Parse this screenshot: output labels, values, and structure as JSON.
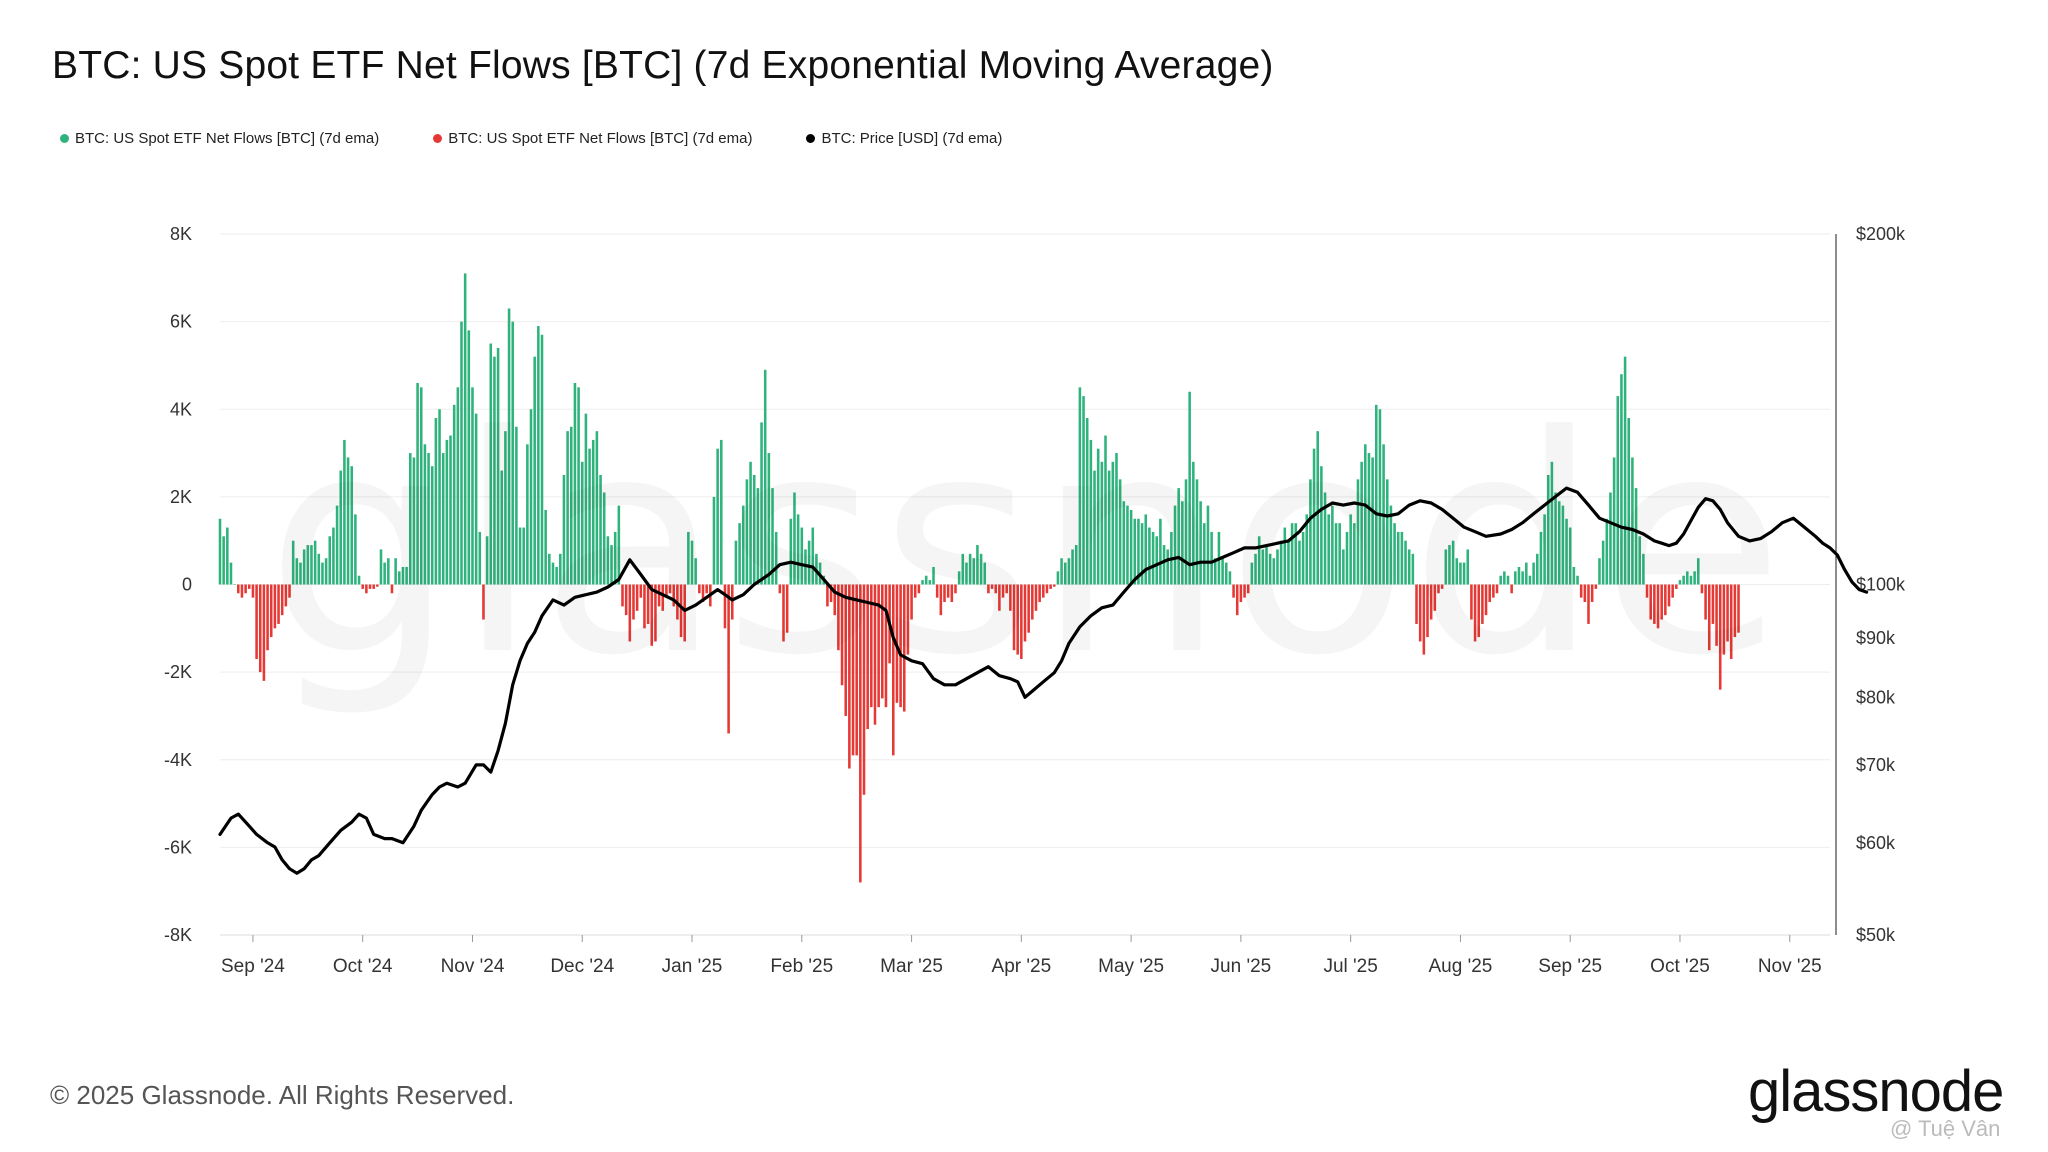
{
  "chart_data": {
    "type": "bar",
    "title": "BTC: US Spot ETF Net Flows [BTC] (7d Exponential Moving Average)",
    "legend": [
      {
        "label": "BTC: US Spot ETF Net Flows [BTC] (7d ema)",
        "color": "#2fb37c"
      },
      {
        "label": "BTC: US Spot ETF Net Flows [BTC] (7d ema)",
        "color": "#e53935"
      },
      {
        "label": "BTC: Price [USD] (7d ema)",
        "color": "#000000"
      }
    ],
    "y_left": {
      "min": -8000,
      "max": 8000,
      "ticks": [
        {
          "v": 8000,
          "label": "8K"
        },
        {
          "v": 6000,
          "label": "6K"
        },
        {
          "v": 4000,
          "label": "4K"
        },
        {
          "v": 2000,
          "label": "2K"
        },
        {
          "v": 0,
          "label": "0"
        },
        {
          "v": -2000,
          "label": "-2K"
        },
        {
          "v": -4000,
          "label": "-4K"
        },
        {
          "v": -6000,
          "label": "-6K"
        },
        {
          "v": -8000,
          "label": "-8K"
        }
      ]
    },
    "y_right": {
      "scale": "log",
      "min": 50000,
      "max": 200000,
      "ticks": [
        {
          "v": 200000,
          "label": "$200k"
        },
        {
          "v": 100000,
          "label": "$100k"
        },
        {
          "v": 90000,
          "label": "$90k"
        },
        {
          "v": 80000,
          "label": "$80k"
        },
        {
          "v": 70000,
          "label": "$70k"
        },
        {
          "v": 60000,
          "label": "$60k"
        },
        {
          "v": 50000,
          "label": "$50k"
        }
      ]
    },
    "x": {
      "start_day": 0,
      "end_day": 440,
      "ticks": [
        {
          "day": 9,
          "label": "Sep '24"
        },
        {
          "day": 39,
          "label": "Oct '24"
        },
        {
          "day": 69,
          "label": "Nov '24"
        },
        {
          "day": 99,
          "label": "Dec '24"
        },
        {
          "day": 129,
          "label": "Jan '25"
        },
        {
          "day": 159,
          "label": "Feb '25"
        },
        {
          "day": 189,
          "label": "Mar '25"
        },
        {
          "day": 219,
          "label": "Apr '25"
        },
        {
          "day": 249,
          "label": "May '25"
        },
        {
          "day": 279,
          "label": "Jun '25"
        },
        {
          "day": 309,
          "label": "Jul '25"
        },
        {
          "day": 339,
          "label": "Aug '25"
        },
        {
          "day": 369,
          "label": "Sep '25"
        },
        {
          "day": 399,
          "label": "Oct '25"
        },
        {
          "day": 429,
          "label": "Nov '25"
        }
      ]
    },
    "flows_days_per_point": 1,
    "flows": [
      1500,
      1100,
      1300,
      500,
      0,
      -200,
      -300,
      -200,
      -100,
      -300,
      -1700,
      -2000,
      -2200,
      -1500,
      -1200,
      -1000,
      -900,
      -700,
      -500,
      -300,
      1000,
      600,
      500,
      800,
      900,
      900,
      1000,
      700,
      500,
      600,
      1100,
      1300,
      1800,
      2600,
      3300,
      2900,
      2700,
      1600,
      200,
      -100,
      -200,
      -100,
      -100,
      -50,
      800,
      500,
      600,
      -200,
      600,
      300,
      400,
      400,
      3000,
      2900,
      4600,
      4500,
      3200,
      3000,
      2700,
      3800,
      4000,
      3000,
      3300,
      3400,
      4100,
      4500,
      6000,
      7100,
      5800,
      4500,
      3900,
      1200,
      -800,
      1100,
      5500,
      5200,
      5400,
      2600,
      3500,
      6300,
      6000,
      3600,
      1300,
      1300,
      3200,
      4000,
      5200,
      5900,
      5700,
      1700,
      700,
      500,
      400,
      700,
      2500,
      3500,
      3600,
      4600,
      4500,
      2800,
      3900,
      3100,
      3300,
      3500,
      2500,
      2100,
      1100,
      900,
      1200,
      1800,
      -500,
      -700,
      -1300,
      -800,
      -600,
      -300,
      -1000,
      -900,
      -1400,
      -1300,
      -500,
      -600,
      -300,
      -200,
      -500,
      -800,
      -1200,
      -1300,
      1200,
      1000,
      600,
      -200,
      -400,
      -200,
      -500,
      2000,
      3100,
      3300,
      -1000,
      -3400,
      -800,
      1000,
      1400,
      1800,
      2400,
      2800,
      2500,
      2200,
      3700,
      4900,
      3000,
      2200,
      1200,
      -200,
      -1300,
      -1100,
      1500,
      2100,
      1600,
      1300,
      800,
      1000,
      1300,
      700,
      500,
      200,
      -500,
      -400,
      -700,
      -1500,
      -2300,
      -3000,
      -4200,
      -3900,
      -3900,
      -6800,
      -4800,
      -3300,
      -2800,
      -3200,
      -2800,
      -2600,
      -2800,
      -1800,
      -3900,
      -2700,
      -2800,
      -2900,
      -1600,
      -800,
      -300,
      -200,
      100,
      200,
      100,
      400,
      -300,
      -700,
      -400,
      -300,
      -400,
      -200,
      300,
      700,
      500,
      700,
      600,
      900,
      700,
      500,
      -200,
      -100,
      -200,
      -600,
      -300,
      -200,
      -600,
      -1500,
      -1600,
      -1700,
      -1300,
      -1100,
      -800,
      -600,
      -400,
      -300,
      -200,
      -100,
      -50,
      300,
      600,
      500,
      600,
      800,
      900,
      4500,
      4300,
      3800,
      3300,
      2600,
      3100,
      2800,
      3400,
      2600,
      2800,
      3000,
      2400,
      1900,
      1800,
      1700,
      1500,
      1500,
      1400,
      1600,
      1300,
      1200,
      1100,
      1500,
      900,
      800,
      1200,
      1800,
      2200,
      1900,
      2400,
      4400,
      2800,
      2400,
      1900,
      1400,
      1800,
      1200,
      600,
      1200,
      600,
      500,
      300,
      -300,
      -700,
      -400,
      -300,
      -200,
      500,
      700,
      1100,
      800,
      900,
      700,
      600,
      800,
      1000,
      1300,
      1000,
      1400,
      1400,
      1000,
      1200,
      1600,
      2400,
      3100,
      3500,
      2700,
      2100,
      1600,
      1800,
      1400,
      1400,
      800,
      1200,
      1600,
      1400,
      2400,
      2800,
      3200,
      3000,
      2900,
      4100,
      4000,
      3200,
      2400,
      1800,
      1400,
      1200,
      1200,
      1000,
      800,
      700,
      -900,
      -1300,
      -1600,
      -1200,
      -800,
      -600,
      -200,
      -100,
      800,
      900,
      1000,
      600,
      500,
      500,
      800,
      -800,
      -1300,
      -1200,
      -900,
      -700,
      -400,
      -300,
      -200,
      200,
      300,
      200,
      -200,
      300,
      400,
      300,
      500,
      200,
      500,
      700,
      1200,
      1600,
      2500,
      2800,
      2100,
      1900,
      1800,
      1500,
      1300,
      400,
      200,
      -300,
      -400,
      -900,
      -400,
      -100,
      600,
      1000,
      1500,
      2100,
      2900,
      4300,
      4800,
      5200,
      3800,
      2900,
      2200,
      1100,
      700,
      -300,
      -800,
      -900,
      -1000,
      -800,
      -700,
      -500,
      -300,
      -100,
      100,
      200,
      300,
      200,
      300,
      600,
      -200,
      -800,
      -1500,
      -900,
      -1400,
      -2400,
      -1600,
      -1300,
      -1700,
      -1200,
      -1100
    ]
  },
  "price_anchors": [
    [
      0,
      61000
    ],
    [
      3,
      63000
    ],
    [
      5,
      63500
    ],
    [
      8,
      62000
    ],
    [
      10,
      61000
    ],
    [
      13,
      60000
    ],
    [
      15,
      59500
    ],
    [
      17,
      58000
    ],
    [
      19,
      57000
    ],
    [
      21,
      56500
    ],
    [
      23,
      57000
    ],
    [
      25,
      58000
    ],
    [
      27,
      58500
    ],
    [
      30,
      60000
    ],
    [
      33,
      61500
    ],
    [
      36,
      62500
    ],
    [
      38,
      63500
    ],
    [
      40,
      63000
    ],
    [
      42,
      61000
    ],
    [
      45,
      60500
    ],
    [
      47,
      60500
    ],
    [
      50,
      60000
    ],
    [
      53,
      62000
    ],
    [
      55,
      64000
    ],
    [
      58,
      66000
    ],
    [
      60,
      67000
    ],
    [
      62,
      67500
    ],
    [
      65,
      67000
    ],
    [
      67,
      67500
    ],
    [
      70,
      70000
    ],
    [
      72,
      70000
    ],
    [
      74,
      69000
    ],
    [
      76,
      72000
    ],
    [
      78,
      76000
    ],
    [
      80,
      82000
    ],
    [
      82,
      86000
    ],
    [
      84,
      89000
    ],
    [
      86,
      91000
    ],
    [
      88,
      94000
    ],
    [
      91,
      97000
    ],
    [
      94,
      96000
    ],
    [
      97,
      97500
    ],
    [
      100,
      98000
    ],
    [
      103,
      98500
    ],
    [
      106,
      99500
    ],
    [
      109,
      101000
    ],
    [
      112,
      105000
    ],
    [
      115,
      102000
    ],
    [
      118,
      99000
    ],
    [
      121,
      98000
    ],
    [
      124,
      97000
    ],
    [
      127,
      95000
    ],
    [
      130,
      96000
    ],
    [
      133,
      97500
    ],
    [
      136,
      99000
    ],
    [
      138,
      98000
    ],
    [
      140,
      97000
    ],
    [
      143,
      98000
    ],
    [
      146,
      100000
    ],
    [
      150,
      102000
    ],
    [
      153,
      104000
    ],
    [
      156,
      104500
    ],
    [
      159,
      104000
    ],
    [
      162,
      103500
    ],
    [
      165,
      101000
    ],
    [
      168,
      98500
    ],
    [
      171,
      97500
    ],
    [
      174,
      97000
    ],
    [
      177,
      96500
    ],
    [
      180,
      96000
    ],
    [
      182,
      95000
    ],
    [
      184,
      90000
    ],
    [
      186,
      87000
    ],
    [
      189,
      86000
    ],
    [
      192,
      85500
    ],
    [
      195,
      83000
    ],
    [
      198,
      82000
    ],
    [
      201,
      82000
    ],
    [
      204,
      83000
    ],
    [
      207,
      84000
    ],
    [
      210,
      85000
    ],
    [
      213,
      83500
    ],
    [
      216,
      83000
    ],
    [
      218,
      82500
    ],
    [
      220,
      80000
    ],
    [
      222,
      81000
    ],
    [
      225,
      82500
    ],
    [
      228,
      84000
    ],
    [
      230,
      86000
    ],
    [
      232,
      89000
    ],
    [
      235,
      92000
    ],
    [
      238,
      94000
    ],
    [
      241,
      95500
    ],
    [
      244,
      96000
    ],
    [
      247,
      98500
    ],
    [
      250,
      101000
    ],
    [
      253,
      103000
    ],
    [
      256,
      104000
    ],
    [
      259,
      105000
    ],
    [
      262,
      105500
    ],
    [
      265,
      104000
    ],
    [
      268,
      104500
    ],
    [
      271,
      104500
    ],
    [
      274,
      105500
    ],
    [
      277,
      106500
    ],
    [
      280,
      107500
    ],
    [
      283,
      107500
    ],
    [
      286,
      108000
    ],
    [
      289,
      108500
    ],
    [
      292,
      109000
    ],
    [
      295,
      111000
    ],
    [
      298,
      114000
    ],
    [
      301,
      116000
    ],
    [
      304,
      117500
    ],
    [
      307,
      117000
    ],
    [
      310,
      117500
    ],
    [
      313,
      117000
    ],
    [
      316,
      115000
    ],
    [
      319,
      114500
    ],
    [
      322,
      115000
    ],
    [
      325,
      117000
    ],
    [
      328,
      118000
    ],
    [
      331,
      117500
    ],
    [
      334,
      116000
    ],
    [
      337,
      114000
    ],
    [
      340,
      112000
    ],
    [
      343,
      111000
    ],
    [
      346,
      110000
    ],
    [
      350,
      110500
    ],
    [
      353,
      111500
    ],
    [
      356,
      113000
    ],
    [
      359,
      115000
    ],
    [
      362,
      117000
    ],
    [
      365,
      119000
    ],
    [
      368,
      121000
    ],
    [
      371,
      120000
    ],
    [
      374,
      117000
    ],
    [
      377,
      114000
    ],
    [
      380,
      113000
    ],
    [
      383,
      112000
    ],
    [
      386,
      111500
    ],
    [
      389,
      110500
    ],
    [
      392,
      109000
    ],
    [
      394,
      108500
    ],
    [
      396,
      108000
    ],
    [
      398,
      108500
    ],
    [
      400,
      110500
    ],
    [
      402,
      113500
    ],
    [
      404,
      116500
    ],
    [
      406,
      118500
    ],
    [
      408,
      118000
    ],
    [
      410,
      116000
    ],
    [
      412,
      113000
    ],
    [
      415,
      110000
    ],
    [
      418,
      109000
    ],
    [
      421,
      109500
    ],
    [
      424,
      111000
    ],
    [
      427,
      113000
    ],
    [
      430,
      114000
    ],
    [
      433,
      112000
    ],
    [
      436,
      110000
    ],
    [
      438,
      108500
    ],
    [
      440,
      107500
    ],
    [
      442,
      106000
    ],
    [
      444,
      103000
    ],
    [
      446,
      100500
    ],
    [
      448,
      99000
    ],
    [
      450,
      98500
    ]
  ],
  "footer": {
    "copyright": "© 2025 Glassnode. All Rights Reserved.",
    "brand": "glassnode",
    "credit": "@ Tuệ Vân"
  },
  "colors": {
    "positive": "#2fb37c",
    "negative": "#e53935",
    "price": "#000000",
    "grid": "#eeeeee",
    "axis_text": "#333333"
  }
}
